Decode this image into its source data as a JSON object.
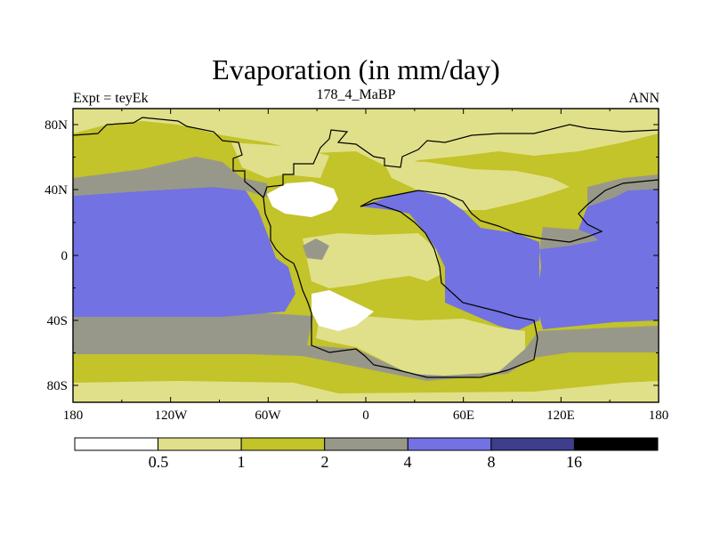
{
  "map": {
    "title": "Evaporation (in mm/day)",
    "left_label": "Expt = teyEk",
    "center_label": "178_4_MaBP",
    "right_label": "ANN",
    "lon_ticks": [
      "180",
      "120W",
      "60W",
      "0",
      "60E",
      "120E",
      "180"
    ],
    "lat_ticks": [
      "80N",
      "40N",
      "0",
      "40S",
      "80S"
    ],
    "colorbar": {
      "labels": [
        "0.5",
        "1",
        "2",
        "4",
        "8",
        "16"
      ],
      "colors": [
        "#ffffff",
        "#e0e08a",
        "#c3c32a",
        "#98988a",
        "#7272e2",
        "#3e3e8c",
        "#000000"
      ]
    }
  }
}
